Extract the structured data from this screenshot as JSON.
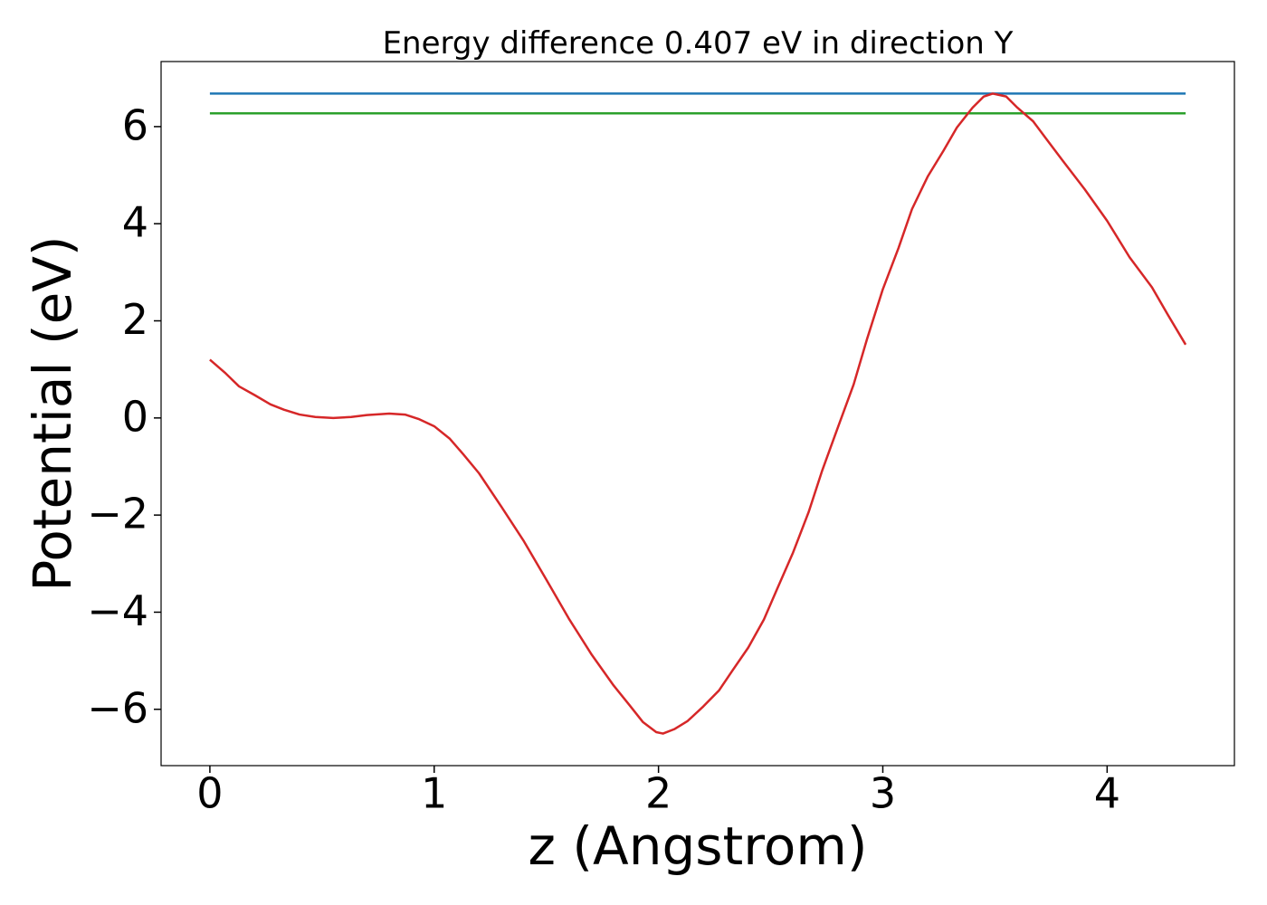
{
  "chart_data": {
    "type": "line",
    "title": "Energy difference 0.407 eV in direction Y",
    "x_label": "z (Angstrom)",
    "y_label": "Potential (eV)",
    "xlim": [
      -0.2175,
      4.5675
    ],
    "ylim": [
      -7.16,
      7.34
    ],
    "xticks": [
      0,
      1,
      2,
      3,
      4
    ],
    "yticks": [
      {
        "value": -6,
        "label": "−6"
      },
      {
        "value": -4,
        "label": "−4"
      },
      {
        "value": -2,
        "label": "−2"
      },
      0,
      2,
      4,
      6
    ],
    "grid": false,
    "series": [
      {
        "color": "#1f77b4",
        "x": [
          0,
          4.35
        ],
        "values": [
          6.68,
          6.68
        ]
      },
      {
        "color": "#2ca02c",
        "x": [
          0,
          4.35
        ],
        "values": [
          6.273,
          6.273
        ]
      },
      {
        "color": "#d62728",
        "x": [
          0,
          0.07,
          0.13,
          0.2,
          0.27,
          0.33,
          0.4,
          0.47,
          0.55,
          0.63,
          0.7,
          0.8,
          0.87,
          0.93,
          1.0,
          1.07,
          1.13,
          1.2,
          1.3,
          1.4,
          1.5,
          1.6,
          1.7,
          1.8,
          1.87,
          1.93,
          1.99,
          2.02,
          2.07,
          2.13,
          2.2,
          2.27,
          2.33,
          2.4,
          2.47,
          2.53,
          2.6,
          2.67,
          2.73,
          2.8,
          2.87,
          2.93,
          3.0,
          3.07,
          3.13,
          3.2,
          3.27,
          3.33,
          3.4,
          3.45,
          3.49,
          3.55,
          3.6,
          3.67,
          3.73,
          3.8,
          3.9,
          4.0,
          4.1,
          4.2,
          4.27,
          4.35
        ],
        "values": [
          1.2,
          0.92,
          0.65,
          0.47,
          0.28,
          0.17,
          0.07,
          0.02,
          0.0,
          0.02,
          0.06,
          0.09,
          0.07,
          -0.02,
          -0.17,
          -0.43,
          -0.75,
          -1.14,
          -1.83,
          -2.54,
          -3.33,
          -4.13,
          -4.86,
          -5.51,
          -5.91,
          -6.26,
          -6.47,
          -6.5,
          -6.41,
          -6.24,
          -5.94,
          -5.61,
          -5.2,
          -4.73,
          -4.15,
          -3.51,
          -2.77,
          -1.93,
          -1.08,
          -0.19,
          0.69,
          1.63,
          2.65,
          3.5,
          4.3,
          4.97,
          5.5,
          5.98,
          6.39,
          6.62,
          6.68,
          6.62,
          6.39,
          6.11,
          5.74,
          5.31,
          4.71,
          4.06,
          3.31,
          2.69,
          2.13,
          1.51
        ]
      }
    ]
  }
}
